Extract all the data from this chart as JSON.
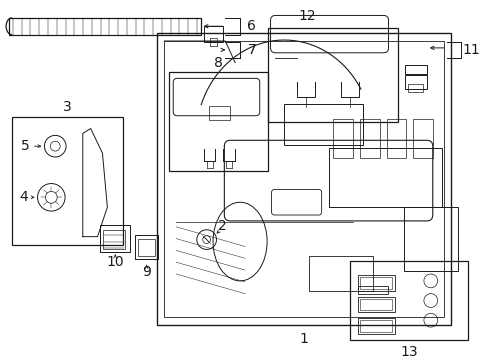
{
  "bg_color": "#ffffff",
  "line_color": "#1a1a1a",
  "fig_width": 4.89,
  "fig_height": 3.6,
  "dpi": 100,
  "font_size": 10,
  "font_size_sm": 8
}
